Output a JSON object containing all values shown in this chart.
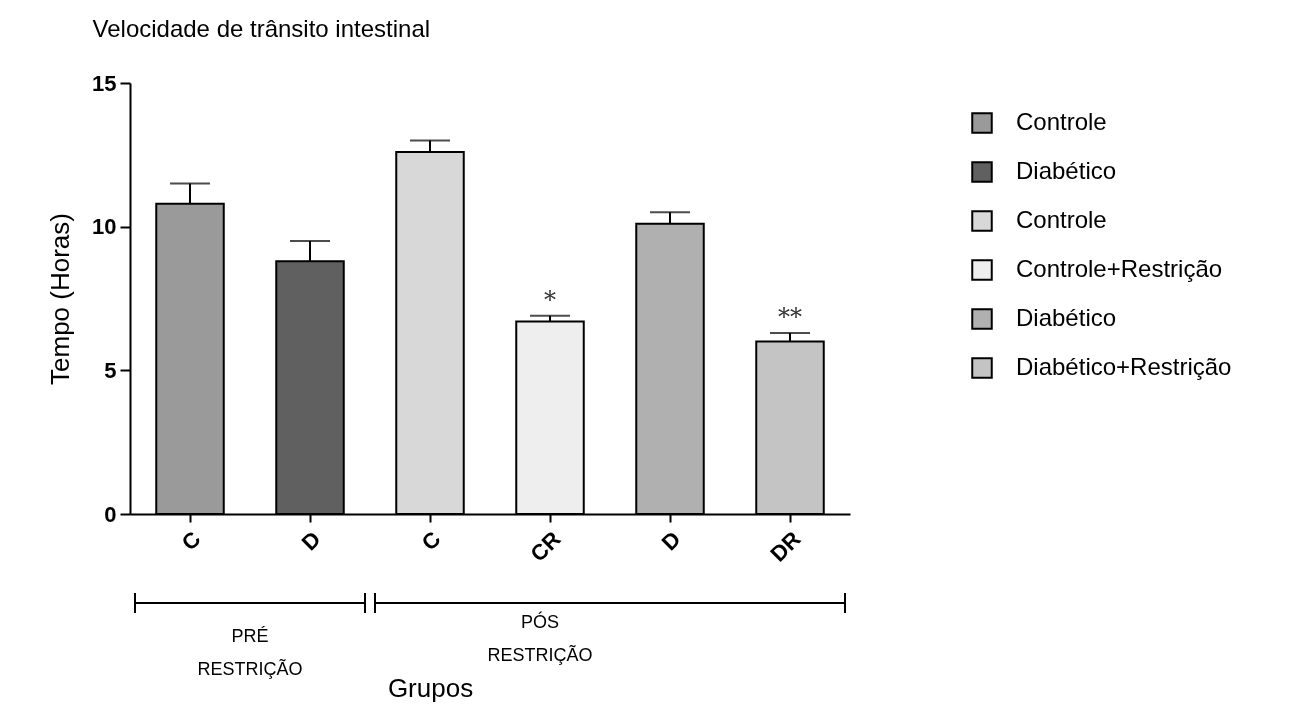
{
  "chart_data": {
    "type": "bar",
    "title": "Velocidade de trânsito intestinal",
    "xlabel": "Grupos",
    "ylabel": "Tempo (Horas)",
    "categories": [
      "C",
      "D",
      "C",
      "CR",
      "D",
      "DR"
    ],
    "series": [
      {
        "name": "Controle",
        "color": "#9a9a9a",
        "values": [
          10.8,
          null,
          null,
          null,
          null,
          null
        ],
        "errors": [
          0.7,
          null,
          null,
          null,
          null,
          null
        ]
      },
      {
        "name": "Diabético",
        "color": "#606060",
        "values": [
          null,
          8.8,
          null,
          null,
          null,
          null
        ],
        "errors": [
          null,
          0.7,
          null,
          null,
          null,
          null
        ]
      },
      {
        "name": "Controle",
        "color": "#d8d8d8",
        "values": [
          null,
          null,
          12.6,
          null,
          null,
          null
        ],
        "errors": [
          null,
          null,
          0.4,
          null,
          null,
          null
        ]
      },
      {
        "name": "Controle+Restrição",
        "color": "#eeeeee",
        "values": [
          null,
          null,
          null,
          6.7,
          null,
          null
        ],
        "errors": [
          null,
          null,
          null,
          0.2,
          null,
          null
        ]
      },
      {
        "name": "Diabético",
        "color": "#b0b0b0",
        "values": [
          null,
          null,
          null,
          null,
          10.1,
          null
        ],
        "errors": [
          null,
          null,
          null,
          null,
          0.4,
          null
        ]
      },
      {
        "name": "Diabético+Restrição",
        "color": "#c4c4c4",
        "values": [
          null,
          null,
          null,
          null,
          null,
          6.0
        ],
        "errors": [
          null,
          null,
          null,
          null,
          null,
          0.3
        ]
      }
    ],
    "ylim": [
      0,
      15
    ],
    "yticks": [
      0,
      5,
      10,
      15
    ],
    "grid": false,
    "legend": "right",
    "annotations": [
      "*",
      "**",
      "PRÉ RESTRIÇÃO",
      "PÓS RESTRIÇÃO"
    ]
  }
}
